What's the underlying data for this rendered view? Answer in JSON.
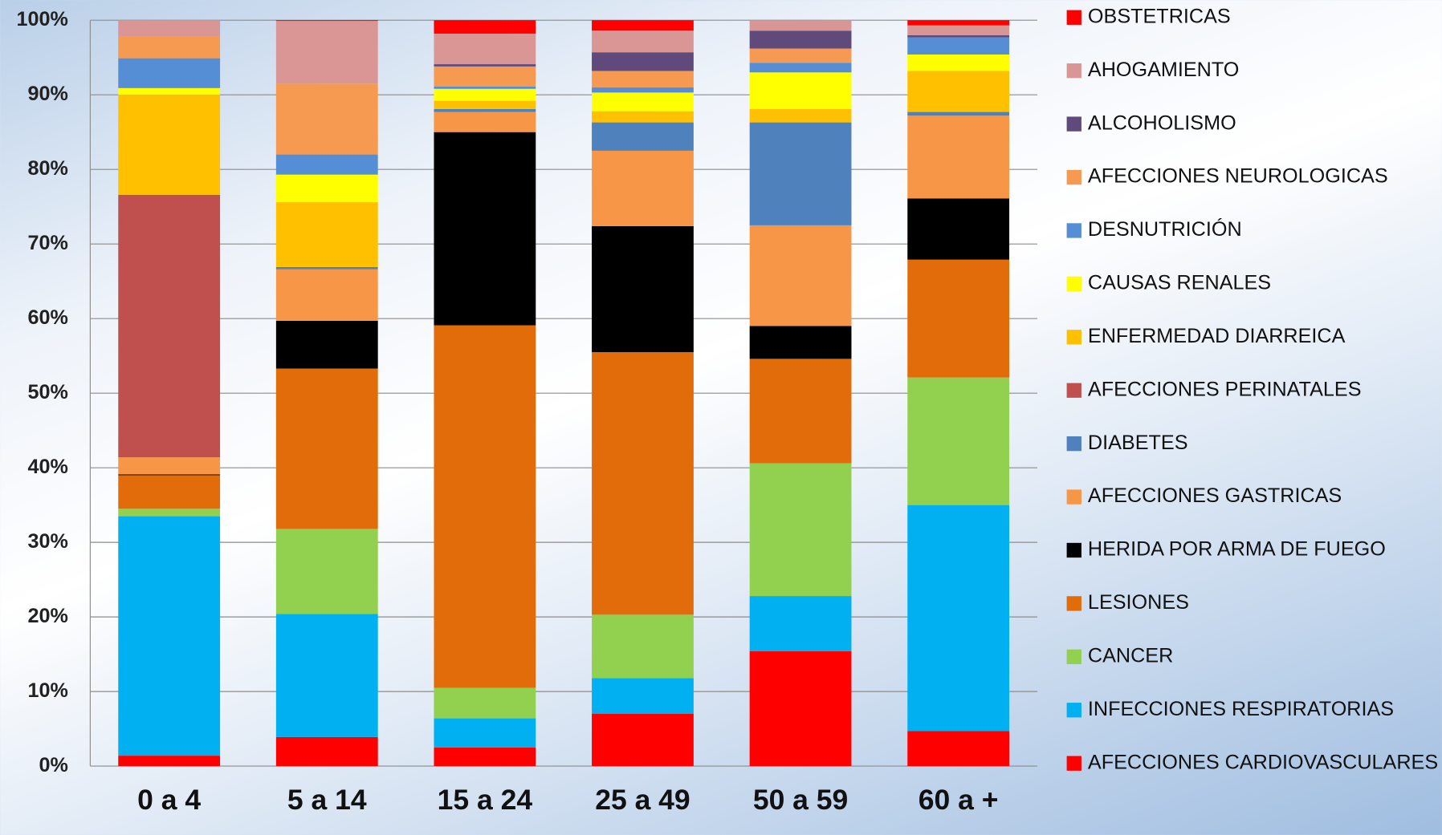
{
  "chart_data": {
    "type": "stacked_bar_100",
    "categories": [
      "0 a 4",
      "5 a 14",
      "15 a 24",
      "25 a 49",
      "50 a 59",
      "60 a +"
    ],
    "ylim": [
      0,
      100
    ],
    "yticks": [
      {
        "value": 0,
        "label": "0%"
      },
      {
        "value": 10,
        "label": "10%"
      },
      {
        "value": 20,
        "label": "20%"
      },
      {
        "value": 30,
        "label": "30%"
      },
      {
        "value": 40,
        "label": "40%"
      },
      {
        "value": 50,
        "label": "50%"
      },
      {
        "value": 60,
        "label": "60%"
      },
      {
        "value": 70,
        "label": "70%"
      },
      {
        "value": 80,
        "label": "80%"
      },
      {
        "value": 90,
        "label": "90%"
      },
      {
        "value": 100,
        "label": "100%"
      }
    ],
    "grid": true,
    "legend": "right",
    "series": [
      {
        "name": "AFECCIONES CARDIOVASCULARES",
        "color": "#ff0000",
        "values": [
          1.4,
          3.9,
          2.5,
          7.0,
          15.4,
          4.7
        ]
      },
      {
        "name": "INFECCIONES RESPIRATORIAS",
        "color": "#00b0f0",
        "values": [
          32.1,
          16.5,
          3.9,
          4.8,
          7.4,
          30.3
        ]
      },
      {
        "name": "CANCER",
        "color": "#92d050",
        "values": [
          1.0,
          11.4,
          4.1,
          8.5,
          17.8,
          17.1
        ]
      },
      {
        "name": "LESIONES",
        "color": "#e36c0a",
        "values": [
          4.5,
          21.5,
          48.6,
          35.2,
          14.0,
          15.8
        ]
      },
      {
        "name": "HERIDA POR ARMA DE FUEGO",
        "color": "#000000",
        "values": [
          0.1,
          6.4,
          25.9,
          16.9,
          4.4,
          8.2
        ]
      },
      {
        "name": "AFECCIONES GASTRICAS",
        "color": "#f79646",
        "values": [
          2.3,
          6.9,
          2.7,
          10.1,
          13.5,
          11.1
        ]
      },
      {
        "name": "DIABETES",
        "color": "#4f81bd",
        "values": [
          0,
          0.3,
          0.4,
          3.8,
          13.8,
          0.5
        ]
      },
      {
        "name": "AFECCIONES PERINATALES",
        "color": "#c0504d",
        "values": [
          35.2,
          0,
          0,
          0,
          0,
          0
        ]
      },
      {
        "name": "ENFERMEDAD DIARREICA",
        "color": "#ffc000",
        "values": [
          13.4,
          8.7,
          1.1,
          1.5,
          1.8,
          5.5
        ]
      },
      {
        "name": "CAUSAS RENALES",
        "color": "#ffff00",
        "values": [
          0.9,
          3.7,
          1.6,
          2.5,
          4.9,
          2.2
        ]
      },
      {
        "name": "DESNUTRICIÓN",
        "color": "#558ed5",
        "values": [
          4.0,
          2.7,
          0.3,
          0.7,
          1.3,
          2.3
        ]
      },
      {
        "name": "AFECCIONES NEUROLOGICAS",
        "color": "#f59a50",
        "values": [
          2.9,
          9.5,
          2.7,
          2.2,
          1.9,
          0
        ]
      },
      {
        "name": "ALCOHOLISMO",
        "color": "#604a7b",
        "values": [
          0,
          0,
          0.3,
          2.5,
          2.4,
          0.3
        ]
      },
      {
        "name": "AHOGAMIENTO",
        "color": "#d99694",
        "values": [
          2.2,
          8.4,
          4.1,
          2.9,
          1.4,
          1.3
        ]
      },
      {
        "name": "OBSTETRICAS",
        "color": "#ff0000",
        "values": [
          0,
          0.1,
          1.8,
          1.4,
          0,
          0.7
        ]
      }
    ]
  }
}
